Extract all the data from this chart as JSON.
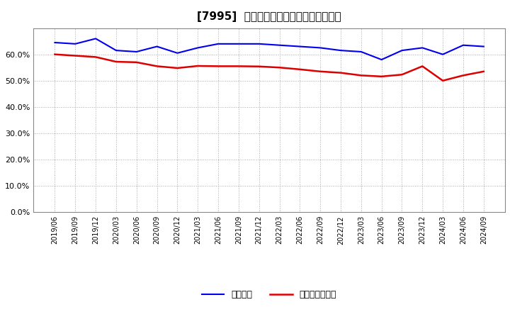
{
  "title": "[7995]  固定比率、固定長期適合率の推移",
  "x_labels": [
    "2019/06",
    "2019/09",
    "2019/12",
    "2020/03",
    "2020/06",
    "2020/09",
    "2020/12",
    "2021/03",
    "2021/06",
    "2021/09",
    "2021/12",
    "2022/03",
    "2022/06",
    "2022/09",
    "2022/12",
    "2023/03",
    "2023/06",
    "2023/09",
    "2023/12",
    "2024/03",
    "2024/06",
    "2024/09"
  ],
  "fixed_ratio": [
    0.645,
    0.64,
    0.66,
    0.615,
    0.61,
    0.63,
    0.605,
    0.625,
    0.64,
    0.64,
    0.64,
    0.635,
    0.63,
    0.625,
    0.615,
    0.61,
    0.58,
    0.615,
    0.625,
    0.6,
    0.635,
    0.63
  ],
  "fixed_long_ratio": [
    0.6,
    0.595,
    0.59,
    0.572,
    0.57,
    0.555,
    0.548,
    0.556,
    0.555,
    0.555,
    0.554,
    0.55,
    0.543,
    0.535,
    0.53,
    0.52,
    0.516,
    0.523,
    0.555,
    0.5,
    0.52,
    0.535
  ],
  "line1_color": "#0000EE",
  "line2_color": "#DD0000",
  "line1_label": "固定比率",
  "line2_label": "固定長期適合率",
  "ylim": [
    0.0,
    0.7
  ],
  "yticks": [
    0.0,
    0.1,
    0.2,
    0.3,
    0.4,
    0.5,
    0.6
  ],
  "bg_color": "#FFFFFF",
  "plot_bg_color": "#FFFFFF",
  "grid_color": "#AAAAAA",
  "title_fontsize": 11
}
